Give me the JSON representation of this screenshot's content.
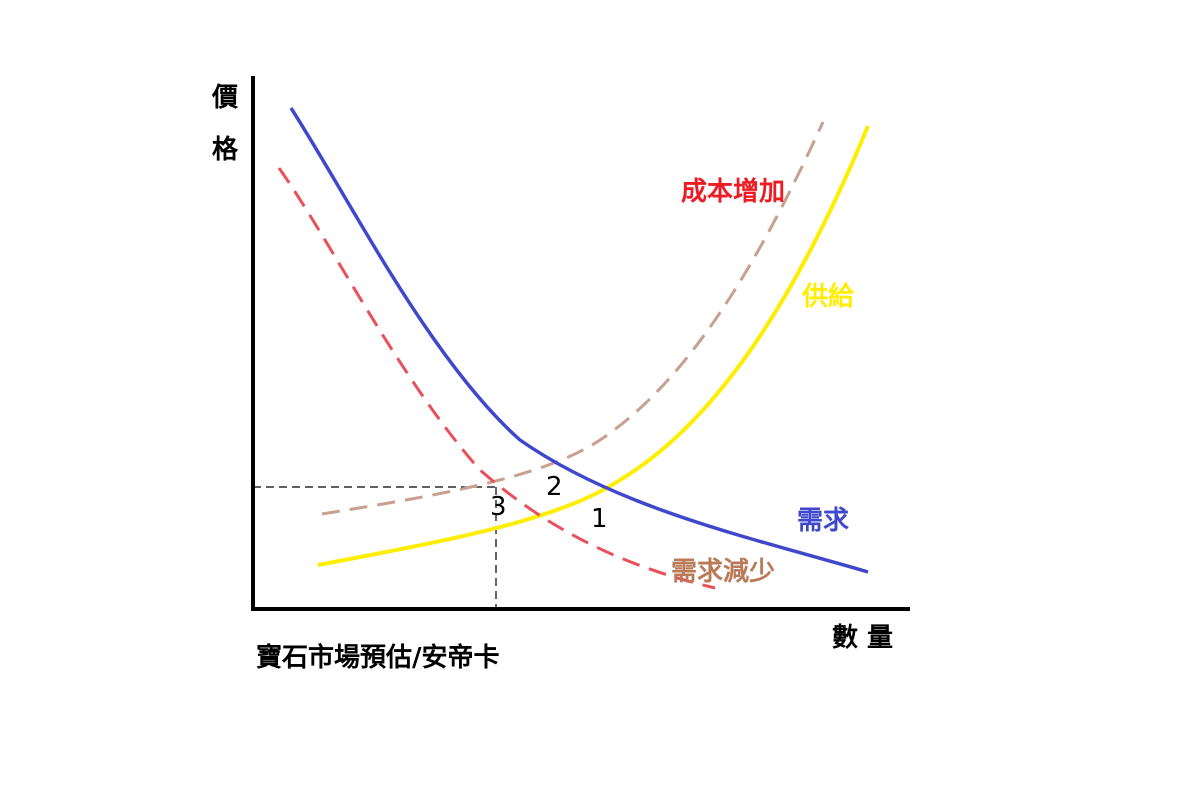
{
  "axes": {
    "y_label_line1": "價",
    "y_label_line2": "格",
    "x_label": "數 量"
  },
  "caption": "寶石市場預估/安帝卡",
  "curves": {
    "demand": {
      "label": "需求",
      "color": "#3f48cc"
    },
    "supply": {
      "label": "供給",
      "color": "#ffee00"
    },
    "supply_cost_increase": {
      "label": "成本增加",
      "label_color": "#ed1c24",
      "line_color": "#c8a090"
    },
    "demand_decrease": {
      "label": "需求減少",
      "label_color": "#b97a57",
      "line_color": "#e8505a"
    }
  },
  "points": {
    "p1": "1",
    "p2": "2",
    "p3": "3"
  }
}
